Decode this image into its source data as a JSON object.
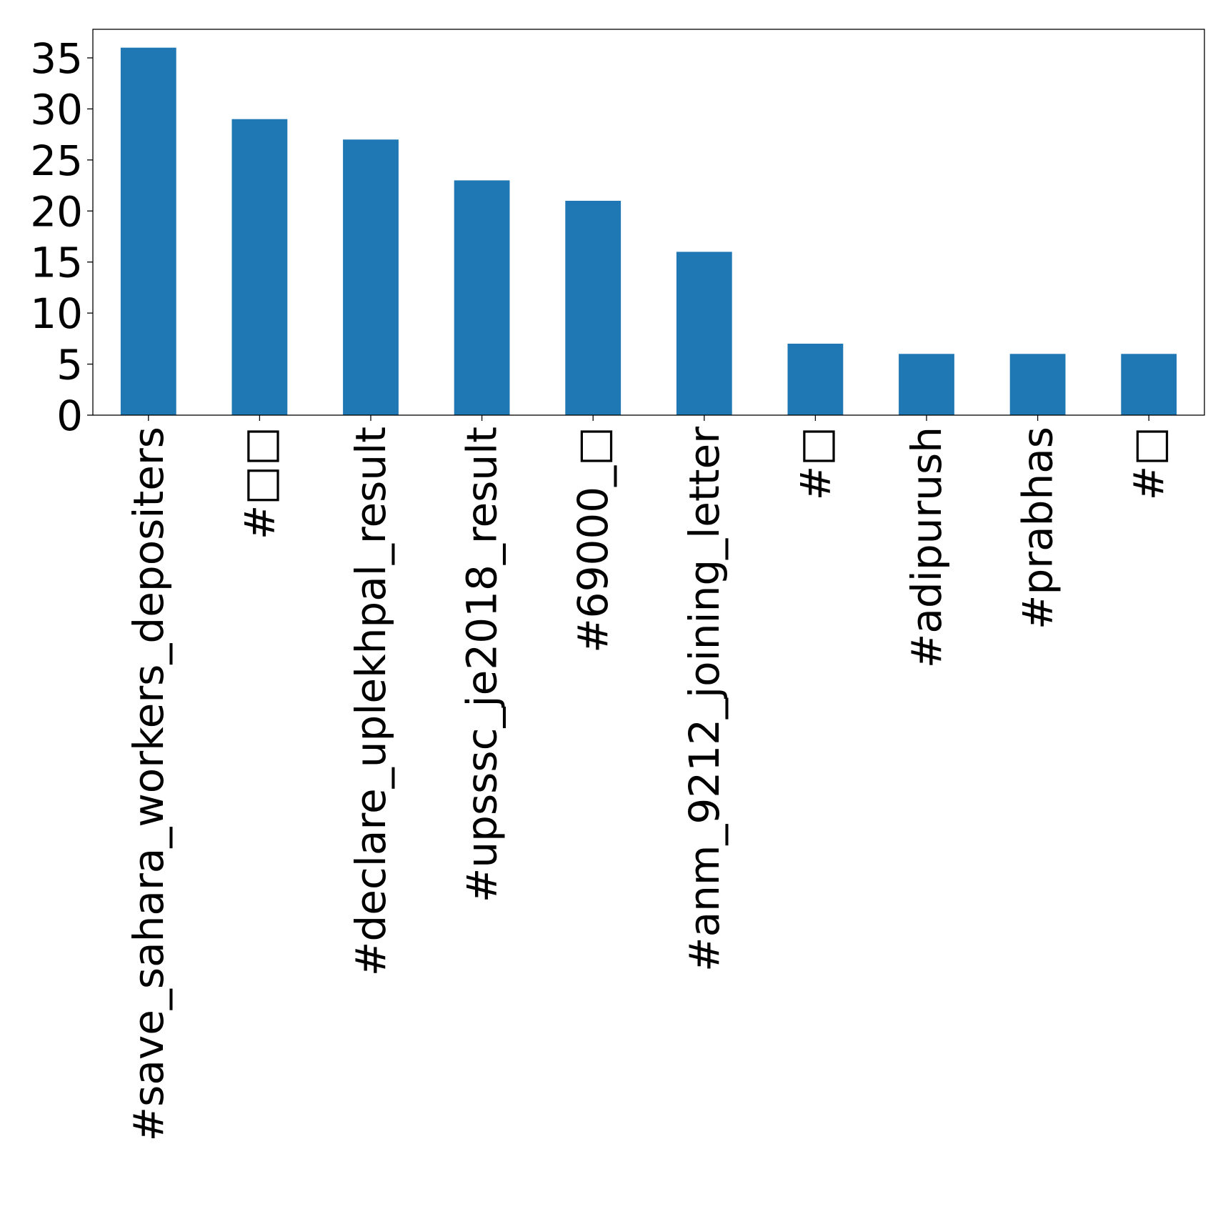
{
  "chart_data": {
    "type": "bar",
    "title": "",
    "xlabel": "",
    "ylabel": "",
    "categories": [
      "#save_sahara_workers_depositers",
      "#□□",
      "#declare_uplekhpal_result",
      "#upsssc_je2018_result",
      "#69000_□",
      "#anm_9212_joining_letter",
      "#□",
      "#adipurush",
      "#prabhas",
      "#□"
    ],
    "values": [
      36,
      29,
      27,
      23,
      21,
      16,
      7,
      6,
      6,
      6
    ],
    "y_ticks": [
      0,
      5,
      10,
      15,
      20,
      25,
      30,
      35
    ],
    "ylim": [
      0,
      37.8
    ],
    "grid": false,
    "legend": "none",
    "bar_color": "#1f77b4"
  }
}
